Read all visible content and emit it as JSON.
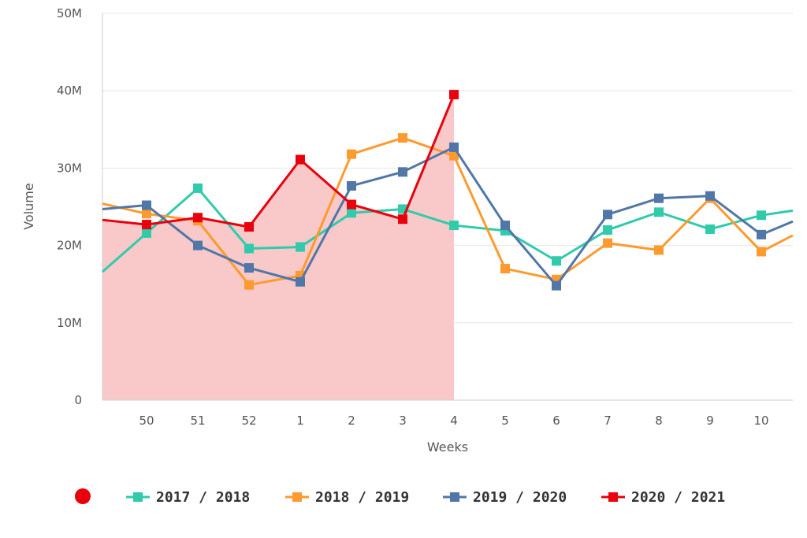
{
  "chart_data": {
    "type": "line",
    "xlabel": "Weeks",
    "ylabel": "Volume",
    "categories": [
      "50",
      "51",
      "52",
      "1",
      "2",
      "3",
      "4",
      "5",
      "6",
      "7",
      "8",
      "9",
      "10"
    ],
    "y_ticks": [
      "0",
      "10M",
      "20M",
      "30M",
      "40M",
      "50M"
    ],
    "ylim": [
      0,
      50
    ],
    "grid": true,
    "legend_position": "bottom",
    "highlight_area": {
      "series": "2020 / 2021",
      "color": "#f9c9c9"
    },
    "series": [
      {
        "name": "2017 / 2018",
        "color": "#2fcbab",
        "edge_start": 16.6,
        "edge_end": 24.5,
        "values": [
          21.6,
          27.4,
          19.6,
          19.8,
          24.2,
          24.7,
          22.6,
          21.9,
          18.0,
          22.0,
          24.3,
          22.1,
          23.9
        ]
      },
      {
        "name": "2018 / 2019",
        "color": "#ff9a2e",
        "edge_start": 25.4,
        "edge_end": 21.3,
        "values": [
          24.1,
          23.2,
          14.9,
          16.1,
          31.8,
          33.9,
          31.6,
          17.0,
          15.6,
          20.3,
          19.4,
          26.1,
          19.2
        ]
      },
      {
        "name": "2019 / 2020",
        "color": "#5176a8",
        "edge_start": 24.7,
        "edge_end": 23.1,
        "values": [
          25.2,
          20.0,
          17.1,
          15.3,
          27.7,
          29.5,
          32.7,
          22.6,
          14.8,
          24.0,
          26.1,
          26.4,
          21.4
        ]
      },
      {
        "name": "2020 / 2021",
        "color": "#e8000d",
        "edge_start": 23.3,
        "edge_end": null,
        "values": [
          22.7,
          23.6,
          22.4,
          31.1,
          25.3,
          23.4,
          39.5,
          null,
          null,
          null,
          null,
          null,
          null
        ]
      }
    ]
  },
  "legend": {
    "dot_color": "#e8000d",
    "items": [
      "2017 / 2018",
      "2018 / 2019",
      "2019 / 2020",
      "2020 / 2021"
    ]
  }
}
